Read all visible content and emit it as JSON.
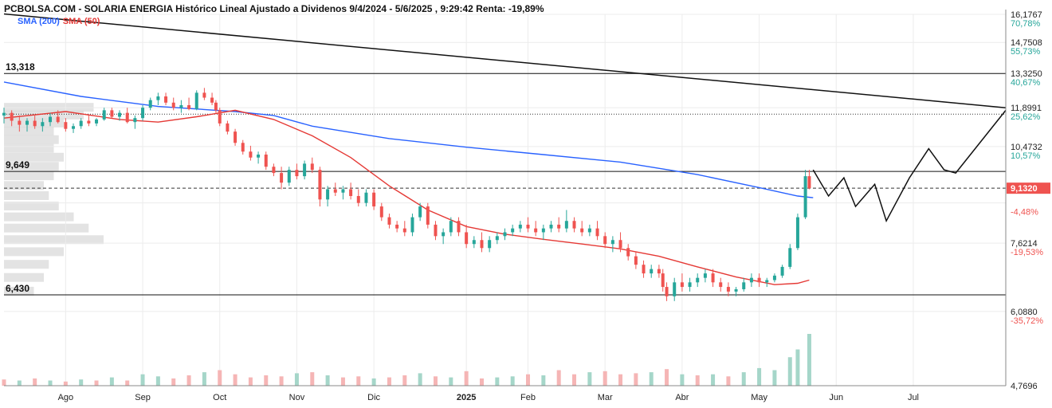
{
  "header": {
    "title": "PCBOLSA.COM - SOLARIA ENERGIA Histórico Lineal Ajustado a Dividenos 9/4/2024 - 5/6/2025 , 9:29:42 Renta: -19,89%"
  },
  "legend": {
    "sma200_label": "SMA (200)",
    "sma50_label": "SMA (50)"
  },
  "colors": {
    "up": "#26a69a",
    "down": "#ef5350",
    "sma200": "#2962ff",
    "sma50": "#e53935",
    "volume_up": "#a5d6c9",
    "volume_down": "#f5b5b5",
    "profile": "#d9d9d9",
    "price_tag": "#ef5350",
    "pct_up": "#26a69a",
    "pct_down": "#ef5350"
  },
  "chart_data": {
    "type": "candlestick",
    "x_axis_labels": [
      "Ago",
      "Sep",
      "Oct",
      "Nov",
      "Dic",
      "2025",
      "Feb",
      "Mar",
      "Abr",
      "May",
      "Jun",
      "Jul"
    ],
    "x_axis_label_months": [
      7.8,
      8.8,
      9.8,
      10.8,
      11.8,
      13.0,
      13.8,
      14.8,
      15.8,
      16.8,
      17.8,
      18.8
    ],
    "y_scale": "log",
    "ylim": [
      4.7696,
      16.1767
    ],
    "y_ticks": [
      {
        "price": 16.1767,
        "label": "16,1767",
        "pct": "70,78%",
        "dir": "up"
      },
      {
        "price": 14.7508,
        "label": "14,7508",
        "pct": "55,73%",
        "dir": "up"
      },
      {
        "price": 13.325,
        "label": "13,3250",
        "pct": "40,67%",
        "dir": "up"
      },
      {
        "price": 11.8991,
        "label": "11,8991",
        "pct": "25,62%",
        "dir": "up"
      },
      {
        "price": 10.4732,
        "label": "10,4732",
        "pct": "10,57%",
        "dir": "up"
      },
      {
        "price": 8.7,
        "label": "",
        "pct": "-4,48%",
        "dir": "down"
      },
      {
        "price": 7.6214,
        "label": "7,6214",
        "pct": "-19,53%",
        "dir": "down"
      },
      {
        "price": 6.088,
        "label": "6,0880",
        "pct": "-35,72%",
        "dir": "down"
      },
      {
        "price": 4.7696,
        "label": "4,7696",
        "pct": "",
        "dir": "down"
      }
    ],
    "last_price": {
      "value": 9.132,
      "label": "9,1320"
    },
    "levels": [
      {
        "value": 13.318,
        "label": "13,318"
      },
      {
        "value": 9.649,
        "label": "9,649"
      },
      {
        "value": 6.43,
        "label": "6,430"
      }
    ],
    "dotted_level": 11.65,
    "trendline": [
      [
        7.0,
        16.2
      ],
      [
        20.0,
        11.9
      ]
    ],
    "sma200": [
      [
        7.0,
        12.95
      ],
      [
        8.0,
        12.35
      ],
      [
        9.0,
        11.95
      ],
      [
        10.0,
        11.75
      ],
      [
        10.5,
        11.6
      ],
      [
        11.0,
        11.2
      ],
      [
        12.0,
        10.75
      ],
      [
        13.0,
        10.45
      ],
      [
        14.0,
        10.2
      ],
      [
        15.0,
        9.95
      ],
      [
        16.0,
        9.55
      ],
      [
        16.8,
        9.15
      ],
      [
        17.3,
        8.9
      ],
      [
        17.5,
        8.85
      ]
    ],
    "sma50": [
      [
        7.0,
        11.5
      ],
      [
        7.8,
        11.75
      ],
      [
        8.5,
        11.45
      ],
      [
        9.0,
        11.35
      ],
      [
        9.5,
        11.55
      ],
      [
        10.0,
        11.8
      ],
      [
        10.5,
        11.45
      ],
      [
        11.0,
        10.85
      ],
      [
        11.5,
        10.1
      ],
      [
        12.0,
        9.2
      ],
      [
        12.5,
        8.5
      ],
      [
        13.0,
        8.05
      ],
      [
        13.5,
        7.85
      ],
      [
        14.0,
        7.72
      ],
      [
        14.5,
        7.6
      ],
      [
        15.0,
        7.48
      ],
      [
        15.5,
        7.3
      ],
      [
        16.0,
        7.05
      ],
      [
        16.5,
        6.82
      ],
      [
        17.0,
        6.65
      ],
      [
        17.3,
        6.68
      ],
      [
        17.45,
        6.75
      ]
    ],
    "projection": [
      [
        17.5,
        9.7
      ],
      [
        17.7,
        8.9
      ],
      [
        17.9,
        9.45
      ],
      [
        18.05,
        8.6
      ],
      [
        18.3,
        9.25
      ],
      [
        18.45,
        8.2
      ],
      [
        18.75,
        9.45
      ],
      [
        19.0,
        10.4
      ],
      [
        19.2,
        9.7
      ],
      [
        19.35,
        9.6
      ],
      [
        20.0,
        11.8
      ]
    ],
    "projection_hook": [
      [
        19.0,
        10.4
      ],
      [
        19.2,
        10.3
      ],
      [
        19.35,
        9.6
      ]
    ],
    "ohlc": [
      [
        7.0,
        11.6,
        11.9,
        11.3,
        11.7
      ],
      [
        7.1,
        11.7,
        11.8,
        11.2,
        11.4
      ],
      [
        7.2,
        11.4,
        11.6,
        11.0,
        11.25
      ],
      [
        7.3,
        11.25,
        11.5,
        11.0,
        11.4
      ],
      [
        7.4,
        11.4,
        11.6,
        11.1,
        11.2
      ],
      [
        7.5,
        11.2,
        11.5,
        11.0,
        11.35
      ],
      [
        7.6,
        11.35,
        11.7,
        11.2,
        11.55
      ],
      [
        7.7,
        11.55,
        11.8,
        11.3,
        11.35
      ],
      [
        7.8,
        11.35,
        11.5,
        11.0,
        11.1
      ],
      [
        7.9,
        11.1,
        11.3,
        10.95,
        11.2
      ],
      [
        8.0,
        11.2,
        11.5,
        11.1,
        11.4
      ],
      [
        8.1,
        11.4,
        11.6,
        11.2,
        11.3
      ],
      [
        8.2,
        11.3,
        11.5,
        11.2,
        11.45
      ],
      [
        8.3,
        11.45,
        11.9,
        11.4,
        11.8
      ],
      [
        8.4,
        11.8,
        11.9,
        11.5,
        11.55
      ],
      [
        8.5,
        11.55,
        11.8,
        11.4,
        11.7
      ],
      [
        8.6,
        11.7,
        11.9,
        11.3,
        11.35
      ],
      [
        8.7,
        11.35,
        11.6,
        11.1,
        11.5
      ],
      [
        8.8,
        11.5,
        12.0,
        11.4,
        11.9
      ],
      [
        8.9,
        11.9,
        12.3,
        11.8,
        12.2
      ],
      [
        9.0,
        12.2,
        12.5,
        12.0,
        12.35
      ],
      [
        9.1,
        12.35,
        12.5,
        12.0,
        12.1
      ],
      [
        9.2,
        12.1,
        12.3,
        11.8,
        11.9
      ],
      [
        9.3,
        11.9,
        12.2,
        11.7,
        12.0
      ],
      [
        9.4,
        12.0,
        12.3,
        11.8,
        11.85
      ],
      [
        9.5,
        11.85,
        12.6,
        11.8,
        12.5
      ],
      [
        9.6,
        12.5,
        12.7,
        12.2,
        12.3
      ],
      [
        9.7,
        12.3,
        12.5,
        12.0,
        12.1
      ],
      [
        9.75,
        12.1,
        12.2,
        11.7,
        11.8
      ],
      [
        9.8,
        11.8,
        11.9,
        11.2,
        11.3
      ],
      [
        9.9,
        11.3,
        11.4,
        10.9,
        11.0
      ],
      [
        10.0,
        11.0,
        11.1,
        10.5,
        10.6
      ],
      [
        10.1,
        10.6,
        10.7,
        10.2,
        10.3
      ],
      [
        10.2,
        10.3,
        10.5,
        10.0,
        10.1
      ],
      [
        10.3,
        10.1,
        10.3,
        9.9,
        10.2
      ],
      [
        10.4,
        10.2,
        10.3,
        9.7,
        9.8
      ],
      [
        10.5,
        9.8,
        9.9,
        9.5,
        9.6
      ],
      [
        10.6,
        9.6,
        9.8,
        9.1,
        9.3
      ],
      [
        10.7,
        9.3,
        9.8,
        9.2,
        9.7
      ],
      [
        10.8,
        9.7,
        9.9,
        9.4,
        9.5
      ],
      [
        10.9,
        9.5,
        10.0,
        9.4,
        9.9
      ],
      [
        11.0,
        9.9,
        10.1,
        9.6,
        9.7
      ],
      [
        11.1,
        9.7,
        9.8,
        8.6,
        8.8
      ],
      [
        11.2,
        8.8,
        9.2,
        8.6,
        9.1
      ],
      [
        11.3,
        9.1,
        9.3,
        8.9,
        9.0
      ],
      [
        11.4,
        9.0,
        9.2,
        8.8,
        9.1
      ],
      [
        11.5,
        9.1,
        9.3,
        8.8,
        8.9
      ],
      [
        11.6,
        8.9,
        9.1,
        8.6,
        8.7
      ],
      [
        11.7,
        8.7,
        9.1,
        8.6,
        9.0
      ],
      [
        11.8,
        9.0,
        9.1,
        8.5,
        8.6
      ],
      [
        11.9,
        8.6,
        8.7,
        8.2,
        8.3
      ],
      [
        12.0,
        8.3,
        8.4,
        8.0,
        8.1
      ],
      [
        12.1,
        8.1,
        8.2,
        7.9,
        8.0
      ],
      [
        12.2,
        8.0,
        8.2,
        7.8,
        7.9
      ],
      [
        12.3,
        7.9,
        8.4,
        7.8,
        8.3
      ],
      [
        12.4,
        8.3,
        8.7,
        8.2,
        8.6
      ],
      [
        12.5,
        8.6,
        8.7,
        8.0,
        8.1
      ],
      [
        12.6,
        8.1,
        8.2,
        7.7,
        7.8
      ],
      [
        12.7,
        7.8,
        8.0,
        7.6,
        7.9
      ],
      [
        12.8,
        7.9,
        8.3,
        7.8,
        8.2
      ],
      [
        12.9,
        8.2,
        8.3,
        7.8,
        7.9
      ],
      [
        13.0,
        7.9,
        8.1,
        7.5,
        7.6
      ],
      [
        13.1,
        7.6,
        7.8,
        7.5,
        7.7
      ],
      [
        13.2,
        7.7,
        7.9,
        7.4,
        7.5
      ],
      [
        13.3,
        7.5,
        7.8,
        7.4,
        7.7
      ],
      [
        13.4,
        7.7,
        7.9,
        7.6,
        7.8
      ],
      [
        13.5,
        7.8,
        8.0,
        7.7,
        7.9
      ],
      [
        13.6,
        7.9,
        8.1,
        7.8,
        8.0
      ],
      [
        13.7,
        8.0,
        8.2,
        7.9,
        8.1
      ],
      [
        13.8,
        8.1,
        8.3,
        7.9,
        8.0
      ],
      [
        13.9,
        8.0,
        8.2,
        7.8,
        7.9
      ],
      [
        14.0,
        7.9,
        8.1,
        7.7,
        8.0
      ],
      [
        14.1,
        8.0,
        8.2,
        7.9,
        8.1
      ],
      [
        14.2,
        8.1,
        8.3,
        7.9,
        8.0
      ],
      [
        14.3,
        8.0,
        8.5,
        7.9,
        8.2
      ],
      [
        14.4,
        8.2,
        8.3,
        7.9,
        8.0
      ],
      [
        14.5,
        8.0,
        8.2,
        7.8,
        7.9
      ],
      [
        14.6,
        7.9,
        8.1,
        7.8,
        8.0
      ],
      [
        14.7,
        8.0,
        8.2,
        7.7,
        7.8
      ],
      [
        14.8,
        7.8,
        7.9,
        7.5,
        7.6
      ],
      [
        14.9,
        7.6,
        7.8,
        7.4,
        7.7
      ],
      [
        15.0,
        7.7,
        7.9,
        7.4,
        7.5
      ],
      [
        15.1,
        7.5,
        7.6,
        7.2,
        7.3
      ],
      [
        15.2,
        7.3,
        7.4,
        7.0,
        7.1
      ],
      [
        15.3,
        7.1,
        7.2,
        6.8,
        6.9
      ],
      [
        15.4,
        6.9,
        7.1,
        6.8,
        7.0
      ],
      [
        15.5,
        7.0,
        7.1,
        6.8,
        6.9
      ],
      [
        15.55,
        6.9,
        7.0,
        6.5,
        6.6
      ],
      [
        15.6,
        6.6,
        6.7,
        6.3,
        6.4
      ],
      [
        15.7,
        6.4,
        6.8,
        6.3,
        6.7
      ],
      [
        15.8,
        6.7,
        6.9,
        6.5,
        6.6
      ],
      [
        15.9,
        6.6,
        6.8,
        6.5,
        6.7
      ],
      [
        16.0,
        6.7,
        6.9,
        6.6,
        6.8
      ],
      [
        16.1,
        6.8,
        7.0,
        6.7,
        6.9
      ],
      [
        16.2,
        6.9,
        7.0,
        6.6,
        6.7
      ],
      [
        16.3,
        6.7,
        6.8,
        6.5,
        6.6
      ],
      [
        16.4,
        6.6,
        6.7,
        6.4,
        6.5
      ],
      [
        16.5,
        6.5,
        6.6,
        6.4,
        6.55
      ],
      [
        16.6,
        6.55,
        6.8,
        6.5,
        6.7
      ],
      [
        16.7,
        6.7,
        6.9,
        6.6,
        6.8
      ],
      [
        16.8,
        6.8,
        6.9,
        6.6,
        6.7
      ],
      [
        16.9,
        6.7,
        6.8,
        6.6,
        6.75
      ],
      [
        17.0,
        6.75,
        6.9,
        6.7,
        6.85
      ],
      [
        17.1,
        6.85,
        7.1,
        6.8,
        7.05
      ],
      [
        17.2,
        7.05,
        7.6,
        7.0,
        7.5
      ],
      [
        17.3,
        7.5,
        8.4,
        7.45,
        8.3
      ],
      [
        17.4,
        8.3,
        9.7,
        8.25,
        9.5
      ],
      [
        17.45,
        9.5,
        9.7,
        9.1,
        9.132
      ]
    ],
    "volume": [
      [
        7.0,
        0.12,
        "down"
      ],
      [
        7.2,
        0.1,
        "up"
      ],
      [
        7.4,
        0.14,
        "down"
      ],
      [
        7.6,
        0.1,
        "up"
      ],
      [
        7.8,
        0.08,
        "down"
      ],
      [
        8.0,
        0.12,
        "up"
      ],
      [
        8.2,
        0.1,
        "down"
      ],
      [
        8.4,
        0.16,
        "up"
      ],
      [
        8.6,
        0.1,
        "down"
      ],
      [
        8.8,
        0.22,
        "up"
      ],
      [
        9.0,
        0.18,
        "up"
      ],
      [
        9.2,
        0.14,
        "down"
      ],
      [
        9.4,
        0.2,
        "down"
      ],
      [
        9.6,
        0.26,
        "up"
      ],
      [
        9.8,
        0.3,
        "down"
      ],
      [
        10.0,
        0.22,
        "down"
      ],
      [
        10.2,
        0.16,
        "down"
      ],
      [
        10.4,
        0.2,
        "down"
      ],
      [
        10.6,
        0.18,
        "down"
      ],
      [
        10.8,
        0.24,
        "up"
      ],
      [
        11.0,
        0.26,
        "down"
      ],
      [
        11.2,
        0.2,
        "up"
      ],
      [
        11.4,
        0.16,
        "down"
      ],
      [
        11.6,
        0.18,
        "down"
      ],
      [
        11.8,
        0.14,
        "up"
      ],
      [
        12.0,
        0.16,
        "down"
      ],
      [
        12.2,
        0.2,
        "down"
      ],
      [
        12.4,
        0.24,
        "up"
      ],
      [
        12.6,
        0.18,
        "down"
      ],
      [
        12.8,
        0.16,
        "up"
      ],
      [
        13.0,
        0.28,
        "down"
      ],
      [
        13.2,
        0.14,
        "down"
      ],
      [
        13.4,
        0.16,
        "up"
      ],
      [
        13.6,
        0.18,
        "up"
      ],
      [
        13.8,
        0.22,
        "down"
      ],
      [
        14.0,
        0.2,
        "up"
      ],
      [
        14.2,
        0.3,
        "down"
      ],
      [
        14.4,
        0.22,
        "down"
      ],
      [
        14.6,
        0.26,
        "up"
      ],
      [
        14.8,
        0.28,
        "down"
      ],
      [
        15.0,
        0.22,
        "down"
      ],
      [
        15.2,
        0.24,
        "down"
      ],
      [
        15.4,
        0.26,
        "up"
      ],
      [
        15.6,
        0.32,
        "down"
      ],
      [
        15.8,
        0.22,
        "up"
      ],
      [
        16.0,
        0.2,
        "down"
      ],
      [
        16.2,
        0.22,
        "up"
      ],
      [
        16.4,
        0.18,
        "down"
      ],
      [
        16.6,
        0.26,
        "up"
      ],
      [
        16.8,
        0.34,
        "up"
      ],
      [
        17.0,
        0.3,
        "up"
      ],
      [
        17.2,
        0.55,
        "up"
      ],
      [
        17.3,
        0.7,
        "up"
      ],
      [
        17.45,
        1.0,
        "up"
      ]
    ],
    "price_profile": [
      [
        11.9,
        0.9
      ],
      [
        11.6,
        0.8
      ],
      [
        11.3,
        0.6
      ],
      [
        11.0,
        0.5
      ],
      [
        10.7,
        0.55
      ],
      [
        10.4,
        0.5
      ],
      [
        10.1,
        0.6
      ],
      [
        9.8,
        0.55
      ],
      [
        9.5,
        0.5
      ],
      [
        9.2,
        0.4
      ],
      [
        8.9,
        0.45
      ],
      [
        8.6,
        0.55
      ],
      [
        8.3,
        0.7
      ],
      [
        8.0,
        0.85
      ],
      [
        7.7,
        1.0
      ],
      [
        7.4,
        0.6
      ],
      [
        7.1,
        0.45
      ],
      [
        6.8,
        0.4
      ],
      [
        6.5,
        0.3
      ]
    ]
  }
}
